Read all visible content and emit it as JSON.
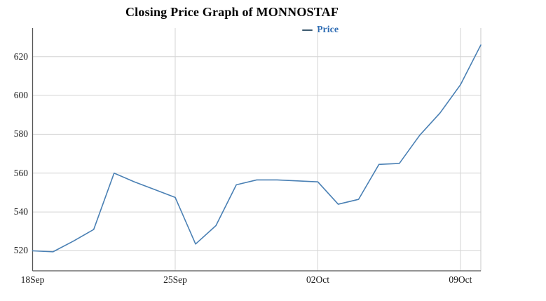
{
  "title": "Closing Price Graph of MONNOSTAF",
  "legend": {
    "label": "Price"
  },
  "colors": {
    "line": "#4a80b4",
    "legend_text": "#2f6db4",
    "legend_marker": "#3d5a70",
    "grid": "#d4d4d4",
    "axis": "#555555",
    "right_border": "#c9c9c9",
    "label_text": "#1a1a1a"
  },
  "chart_data": {
    "type": "line",
    "title": "Closing Price Graph of MONNOSTAF",
    "xlabel": "",
    "ylabel": "",
    "grid": true,
    "legend_position": "top-center",
    "x": [
      "18Sep",
      "19Sep",
      "20Sep",
      "21Sep",
      "22Sep",
      "23Sep",
      "24Sep",
      "25Sep",
      "26Sep",
      "27Sep",
      "28Sep",
      "29Sep",
      "30Sep",
      "01Oct",
      "02Oct",
      "03Oct",
      "04Oct",
      "05Oct",
      "06Oct",
      "07Oct",
      "08Oct",
      "09Oct",
      "10Oct"
    ],
    "series": [
      {
        "name": "Price",
        "values": [
          520,
          519.5,
          525,
          531,
          560,
          555.5,
          551.5,
          547.5,
          523.5,
          533,
          554,
          556.5,
          556.5,
          556,
          555.5,
          544,
          546.5,
          564.5,
          565,
          579.5,
          591,
          605.5,
          626
        ]
      }
    ],
    "x_tick_indices": [
      0,
      7,
      14,
      21
    ],
    "x_tick_labels": [
      "18Sep",
      "25Sep",
      "02Oct",
      "09Oct"
    ],
    "y_ticks": [
      520,
      540,
      560,
      580,
      600,
      620
    ],
    "ylim": [
      509.7,
      634.7
    ]
  }
}
